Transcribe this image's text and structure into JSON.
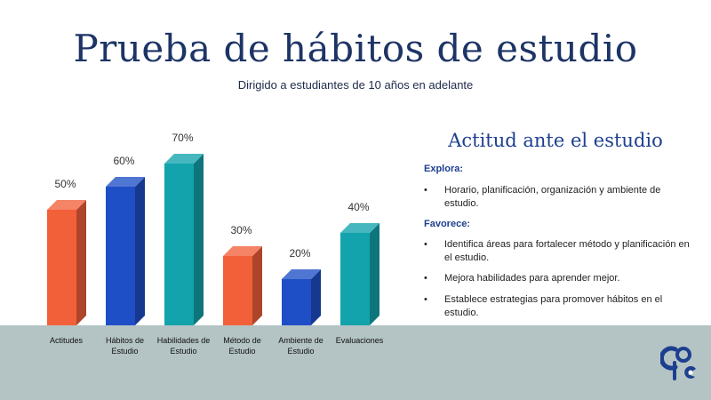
{
  "header": {
    "title": "Prueba de hábitos de estudio",
    "subtitle": "Dirigido a estudiantes de 10 años en adelante"
  },
  "chart_data": {
    "type": "bar",
    "categories": [
      "Actitudes",
      "Hábitos de Estudio",
      "Habilidades de Estudio",
      "Método de Estudio",
      "Ambiente de Estudio",
      "Evaluaciones"
    ],
    "category_lines": [
      [
        "Actitudes"
      ],
      [
        "Hábitos de",
        "Estudio"
      ],
      [
        "Habilidades de",
        "Estudio"
      ],
      [
        "Método de",
        "Estudio"
      ],
      [
        "Ambiente de",
        "Estudio"
      ],
      [
        "Evaluaciones"
      ]
    ],
    "values": [
      50,
      60,
      70,
      30,
      20,
      40
    ],
    "value_labels": [
      "50%",
      "60%",
      "70%",
      "30%",
      "20%",
      "40%"
    ],
    "colors": [
      "#f2603a",
      "#1f4fc7",
      "#13a3ad",
      "#f2603a",
      "#1f4fc7",
      "#13a3ad"
    ],
    "unit": "%",
    "ylim": [
      0,
      100
    ]
  },
  "panel": {
    "title": "Actitud ante el estudio",
    "section1_label": "Explora:",
    "section1_items": [
      "Horario, planificación, organización y ambiente de estudio."
    ],
    "section2_label": "Favorece:",
    "section2_items": [
      "Identifica áreas para fortalecer método y planificación en el estudio.",
      "Mejora habilidades para aprender mejor.",
      "Establece estrategias para promover hábitos en el estudio."
    ],
    "bullet": "•"
  },
  "logo": {
    "name": "cope-logo-icon",
    "accent": "#1d3f8f"
  }
}
